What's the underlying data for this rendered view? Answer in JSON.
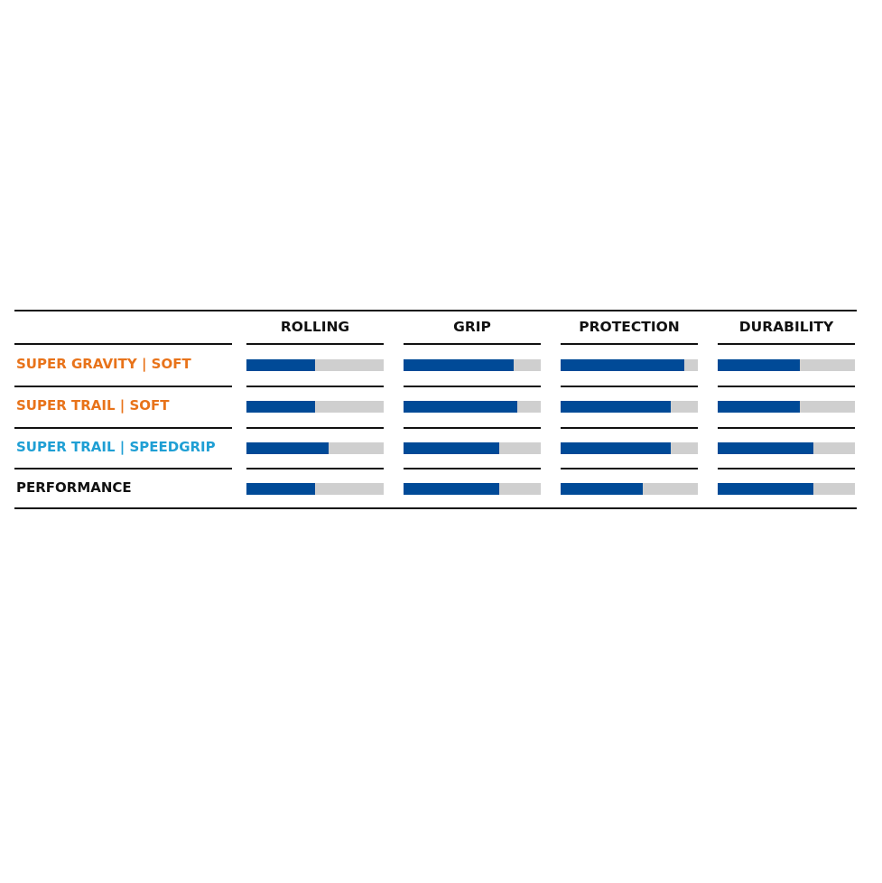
{
  "chart_data": {
    "type": "bar",
    "orientation": "horizontal",
    "categories": [
      "ROLLING",
      "GRIP",
      "PROTECTION",
      "DURABILITY"
    ],
    "value_scale": "fraction of full bar",
    "series": [
      {
        "name": "SUPER GRAVITY | SOFT",
        "color": "#e8731a",
        "values": [
          0.5,
          0.8,
          0.9,
          0.6
        ]
      },
      {
        "name": "SUPER TRAIL | SOFT",
        "color": "#e8731a",
        "values": [
          0.5,
          0.83,
          0.8,
          0.6
        ]
      },
      {
        "name": "SUPER TRAIL | SPEEDGRIP",
        "color": "#1f9fd4",
        "values": [
          0.6,
          0.7,
          0.8,
          0.7
        ]
      },
      {
        "name": "PERFORMANCE",
        "color": "#111111",
        "values": [
          0.5,
          0.7,
          0.6,
          0.7
        ]
      }
    ],
    "bar_fill_color": "#004a97",
    "bar_track_color": "#cfcfcf",
    "xlim": [
      0,
      1
    ]
  }
}
